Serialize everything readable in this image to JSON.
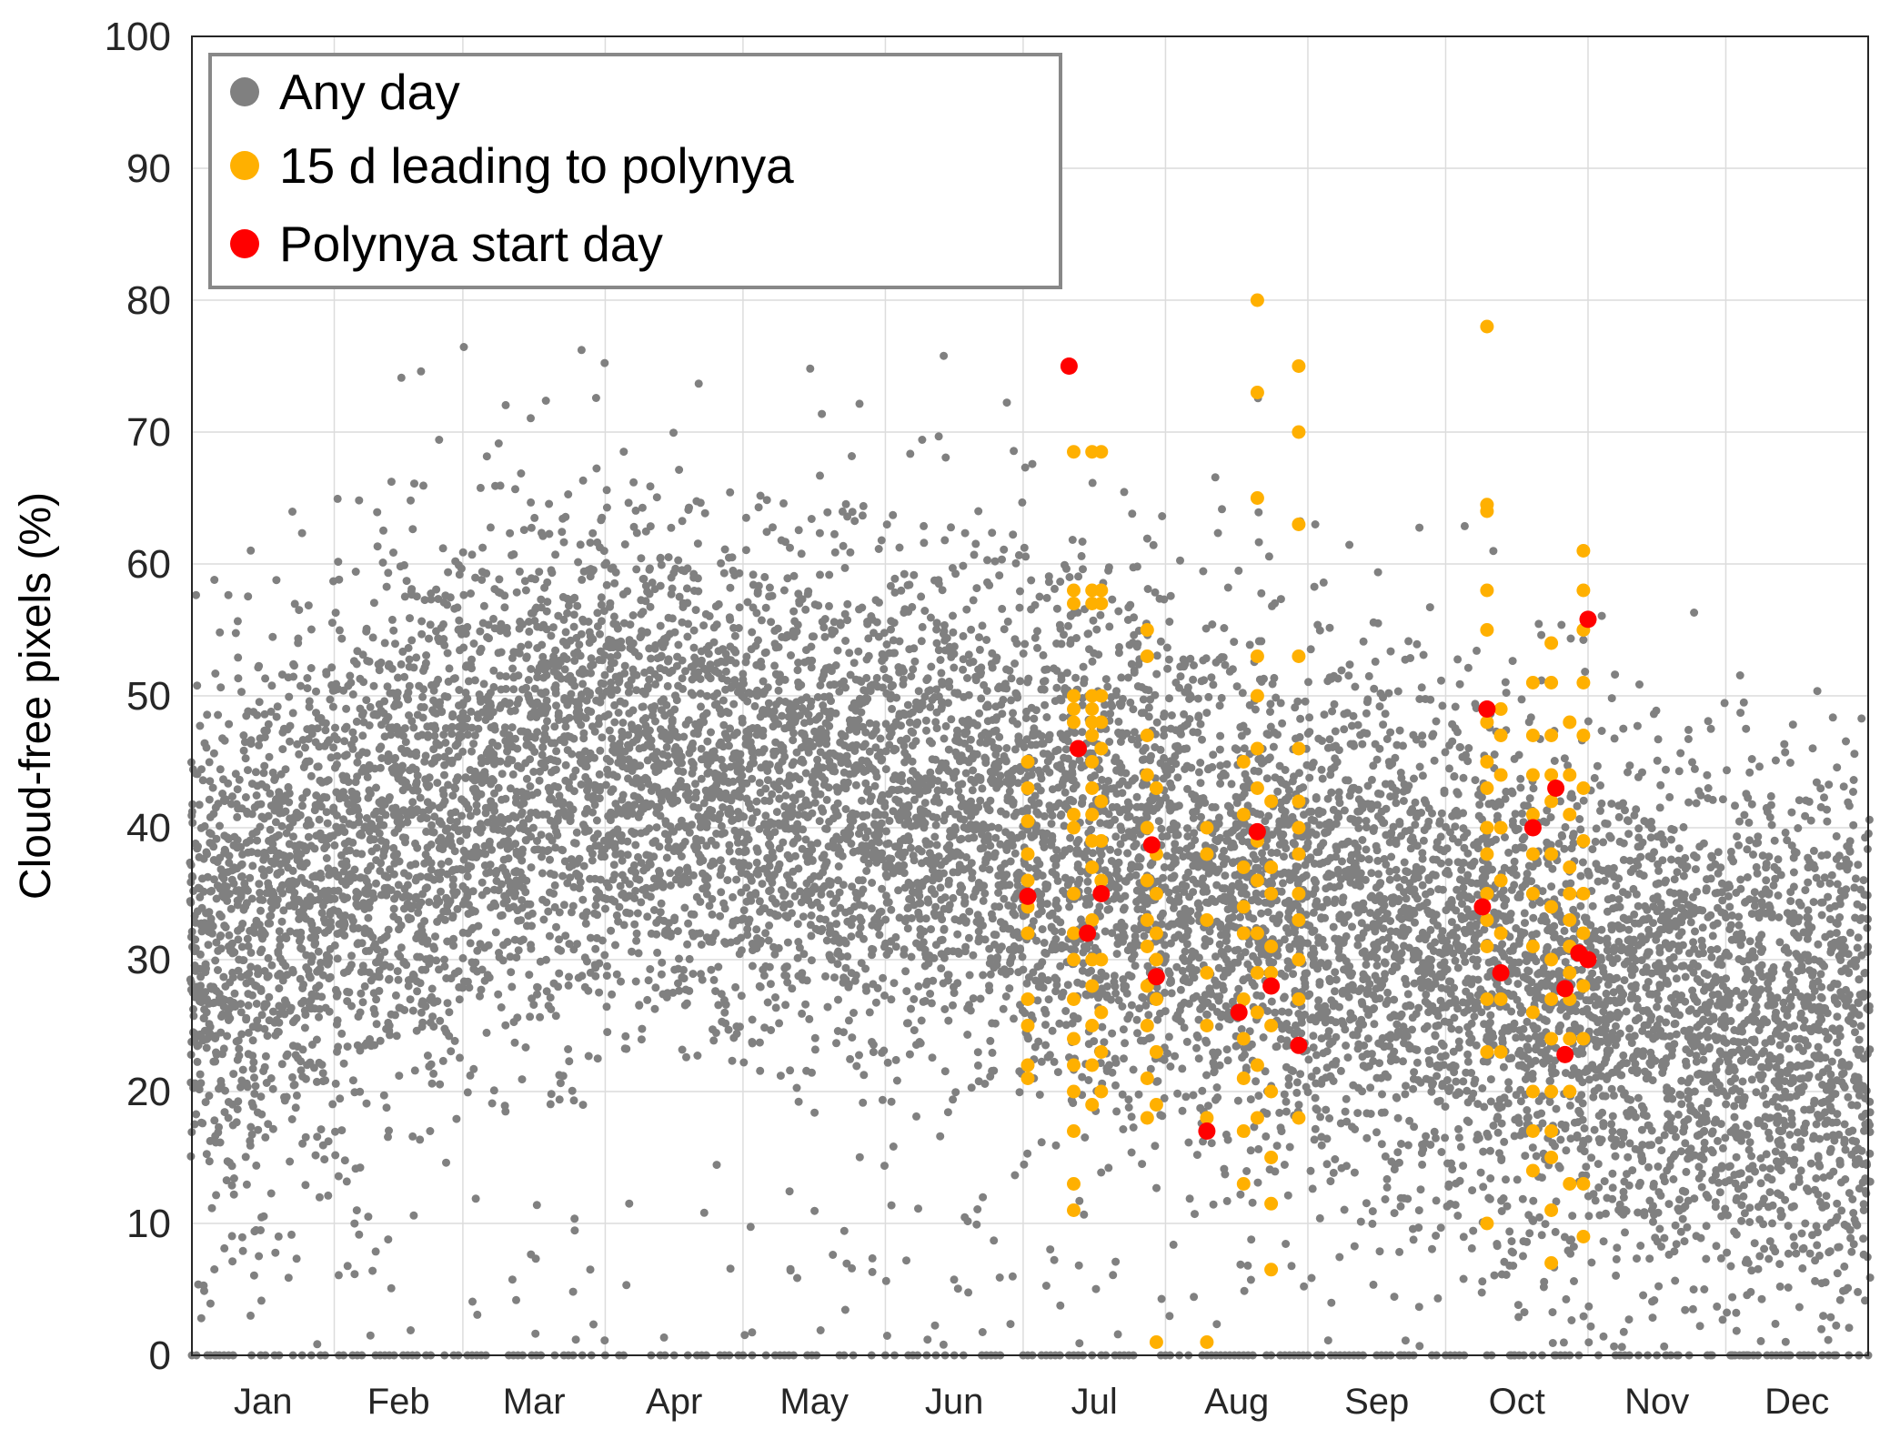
{
  "chart_data": {
    "type": "scatter",
    "title": "",
    "xlabel": "",
    "ylabel": "Cloud-free pixels (%)",
    "xlim": [
      1,
      366
    ],
    "ylim": [
      0,
      100
    ],
    "yticks": [
      0,
      10,
      20,
      30,
      40,
      50,
      60,
      70,
      80,
      90,
      100
    ],
    "months": [
      {
        "label": "Jan",
        "start": 1,
        "end": 32
      },
      {
        "label": "Feb",
        "start": 32,
        "end": 60
      },
      {
        "label": "Mar",
        "start": 60,
        "end": 91
      },
      {
        "label": "Apr",
        "start": 91,
        "end": 121
      },
      {
        "label": "May",
        "start": 121,
        "end": 152
      },
      {
        "label": "Jun",
        "start": 152,
        "end": 182
      },
      {
        "label": "Jul",
        "start": 182,
        "end": 213
      },
      {
        "label": "Aug",
        "start": 213,
        "end": 244
      },
      {
        "label": "Sep",
        "start": 244,
        "end": 274
      },
      {
        "label": "Oct",
        "start": 274,
        "end": 305
      },
      {
        "label": "Nov",
        "start": 305,
        "end": 335
      },
      {
        "label": "Dec",
        "start": 335,
        "end": 366
      }
    ],
    "grid": true,
    "legend_position": "top-left",
    "series": [
      {
        "name": "Any day",
        "color": "#808080",
        "marker": "small circle",
        "seasonal_mean": [
          [
            1,
            30
          ],
          [
            32,
            37
          ],
          [
            60,
            42
          ],
          [
            91,
            46
          ],
          [
            121,
            43
          ],
          [
            152,
            41
          ],
          [
            182,
            40
          ],
          [
            213,
            37
          ],
          [
            244,
            34
          ],
          [
            274,
            30
          ],
          [
            305,
            28
          ],
          [
            335,
            24
          ],
          [
            366,
            25
          ]
        ],
        "spread_sd": 10,
        "annotation": "dense cloud of daily values for all years; many zero values along the x axis"
      },
      {
        "name": "15 d leading to polynya",
        "color": "#ffb000",
        "points": [
          [
            183,
            45
          ],
          [
            183,
            43
          ],
          [
            183,
            40.5
          ],
          [
            183,
            38
          ],
          [
            183,
            36
          ],
          [
            183,
            34
          ],
          [
            183,
            32
          ],
          [
            183,
            27
          ],
          [
            183,
            25
          ],
          [
            183,
            22
          ],
          [
            183,
            21
          ],
          [
            193,
            68.5
          ],
          [
            193,
            58
          ],
          [
            193,
            57
          ],
          [
            193,
            50
          ],
          [
            193,
            49
          ],
          [
            193,
            48
          ],
          [
            193,
            41
          ],
          [
            193,
            40
          ],
          [
            193,
            35
          ],
          [
            193,
            32
          ],
          [
            193,
            30
          ],
          [
            193,
            27
          ],
          [
            193,
            24
          ],
          [
            193,
            22
          ],
          [
            193,
            20
          ],
          [
            193,
            17
          ],
          [
            193,
            13
          ],
          [
            193,
            11
          ],
          [
            197,
            68.5
          ],
          [
            197,
            58
          ],
          [
            197,
            57
          ],
          [
            197,
            50
          ],
          [
            197,
            49
          ],
          [
            197,
            48
          ],
          [
            197,
            47
          ],
          [
            197,
            45
          ],
          [
            197,
            43
          ],
          [
            197,
            41
          ],
          [
            197,
            39
          ],
          [
            197,
            37
          ],
          [
            197,
            33
          ],
          [
            197,
            30
          ],
          [
            197,
            28
          ],
          [
            197,
            25
          ],
          [
            197,
            22
          ],
          [
            197,
            19
          ],
          [
            199,
            68.5
          ],
          [
            199,
            58
          ],
          [
            199,
            57
          ],
          [
            199,
            50
          ],
          [
            199,
            48
          ],
          [
            199,
            46
          ],
          [
            199,
            42
          ],
          [
            199,
            39
          ],
          [
            199,
            36
          ],
          [
            199,
            30
          ],
          [
            199,
            26
          ],
          [
            199,
            23
          ],
          [
            199,
            20
          ],
          [
            209,
            55
          ],
          [
            209,
            53
          ],
          [
            209,
            47
          ],
          [
            209,
            44
          ],
          [
            209,
            40
          ],
          [
            209,
            36
          ],
          [
            209,
            33
          ],
          [
            209,
            31
          ],
          [
            209,
            28
          ],
          [
            209,
            25
          ],
          [
            209,
            21
          ],
          [
            209,
            18
          ],
          [
            211,
            43
          ],
          [
            211,
            38
          ],
          [
            211,
            35
          ],
          [
            211,
            32
          ],
          [
            211,
            30
          ],
          [
            211,
            27
          ],
          [
            211,
            23
          ],
          [
            211,
            19
          ],
          [
            211,
            1
          ],
          [
            222,
            40
          ],
          [
            222,
            38
          ],
          [
            222,
            33
          ],
          [
            222,
            29
          ],
          [
            222,
            25
          ],
          [
            222,
            18
          ],
          [
            222,
            1
          ],
          [
            230,
            45
          ],
          [
            230,
            41
          ],
          [
            230,
            37
          ],
          [
            230,
            34
          ],
          [
            230,
            32
          ],
          [
            230,
            27
          ],
          [
            230,
            24
          ],
          [
            230,
            21
          ],
          [
            230,
            17
          ],
          [
            230,
            13
          ],
          [
            233,
            80
          ],
          [
            233,
            73
          ],
          [
            233,
            65
          ],
          [
            233,
            53
          ],
          [
            233,
            50
          ],
          [
            233,
            46
          ],
          [
            233,
            43
          ],
          [
            233,
            39
          ],
          [
            233,
            36
          ],
          [
            233,
            32
          ],
          [
            233,
            29
          ],
          [
            233,
            26
          ],
          [
            233,
            22
          ],
          [
            233,
            18
          ],
          [
            236,
            42
          ],
          [
            236,
            37
          ],
          [
            236,
            35
          ],
          [
            236,
            31
          ],
          [
            236,
            29
          ],
          [
            236,
            25
          ],
          [
            236,
            20
          ],
          [
            236,
            15
          ],
          [
            236,
            11.5
          ],
          [
            236,
            6.5
          ],
          [
            242,
            75
          ],
          [
            242,
            70
          ],
          [
            242,
            63
          ],
          [
            242,
            53
          ],
          [
            242,
            46
          ],
          [
            242,
            42
          ],
          [
            242,
            40
          ],
          [
            242,
            38
          ],
          [
            242,
            35
          ],
          [
            242,
            33
          ],
          [
            242,
            30
          ],
          [
            242,
            27
          ],
          [
            242,
            18
          ],
          [
            283,
            78
          ],
          [
            283,
            64.5
          ],
          [
            283,
            64
          ],
          [
            283,
            58
          ],
          [
            283,
            55
          ],
          [
            283,
            48
          ],
          [
            283,
            45
          ],
          [
            283,
            43
          ],
          [
            283,
            40
          ],
          [
            283,
            38
          ],
          [
            283,
            35
          ],
          [
            283,
            33
          ],
          [
            283,
            31
          ],
          [
            283,
            27
          ],
          [
            283,
            23
          ],
          [
            283,
            10
          ],
          [
            286,
            49
          ],
          [
            286,
            47
          ],
          [
            286,
            44
          ],
          [
            286,
            40
          ],
          [
            286,
            36
          ],
          [
            286,
            32
          ],
          [
            286,
            27
          ],
          [
            286,
            23
          ],
          [
            293,
            51
          ],
          [
            293,
            47
          ],
          [
            293,
            44
          ],
          [
            293,
            41
          ],
          [
            293,
            38
          ],
          [
            293,
            35
          ],
          [
            293,
            31
          ],
          [
            293,
            26
          ],
          [
            293,
            20
          ],
          [
            293,
            17
          ],
          [
            293,
            14
          ],
          [
            297,
            54
          ],
          [
            297,
            51
          ],
          [
            297,
            47
          ],
          [
            297,
            44
          ],
          [
            297,
            42
          ],
          [
            297,
            38
          ],
          [
            297,
            34
          ],
          [
            297,
            30
          ],
          [
            297,
            27
          ],
          [
            297,
            24
          ],
          [
            297,
            20
          ],
          [
            297,
            17
          ],
          [
            297,
            15
          ],
          [
            297,
            11
          ],
          [
            297,
            7
          ],
          [
            301,
            48
          ],
          [
            301,
            44
          ],
          [
            301,
            41
          ],
          [
            301,
            37
          ],
          [
            301,
            35
          ],
          [
            301,
            33
          ],
          [
            301,
            31
          ],
          [
            301,
            29
          ],
          [
            301,
            27
          ],
          [
            301,
            24
          ],
          [
            301,
            20
          ],
          [
            301,
            13
          ],
          [
            304,
            61
          ],
          [
            304,
            58
          ],
          [
            304,
            55
          ],
          [
            304,
            51
          ],
          [
            304,
            47
          ],
          [
            304,
            43
          ],
          [
            304,
            39
          ],
          [
            304,
            35
          ],
          [
            304,
            32
          ],
          [
            304,
            28
          ],
          [
            304,
            24
          ],
          [
            304,
            13
          ],
          [
            304,
            9
          ]
        ]
      },
      {
        "name": "Polynya start day",
        "color": "#ff0000",
        "points": [
          [
            183,
            34.8
          ],
          [
            192,
            75
          ],
          [
            194,
            46
          ],
          [
            196,
            32
          ],
          [
            199,
            35
          ],
          [
            210,
            38.7
          ],
          [
            211,
            28.7
          ],
          [
            222,
            17
          ],
          [
            229,
            26
          ],
          [
            233,
            39.7
          ],
          [
            236,
            28
          ],
          [
            242,
            23.5
          ],
          [
            282,
            34
          ],
          [
            283,
            49
          ],
          [
            286,
            29
          ],
          [
            293,
            40
          ],
          [
            298,
            43
          ],
          [
            300,
            27.8
          ],
          [
            300,
            22.8
          ],
          [
            303,
            30.5
          ],
          [
            305,
            30
          ],
          [
            305,
            55.8
          ]
        ]
      }
    ],
    "legend": [
      "Any day",
      "15 d leading to polynya",
      "Polynya start day"
    ]
  }
}
